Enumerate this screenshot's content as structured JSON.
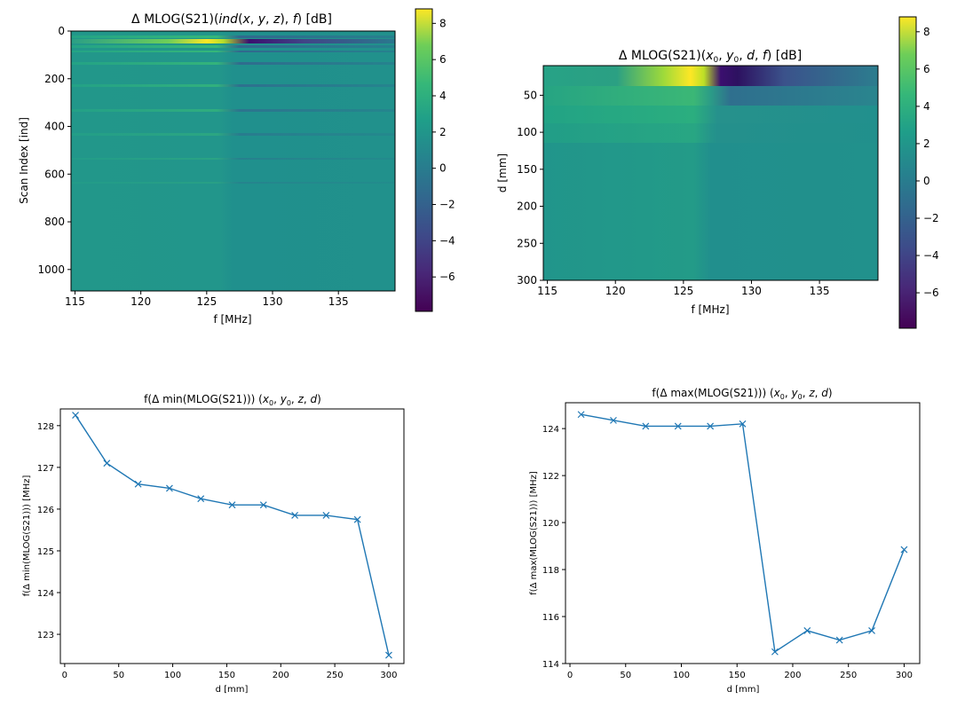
{
  "chart_data": [
    {
      "type": "heatmap",
      "title": "Δ MLOG(S21)(ind(x, y, z), f) [dB]",
      "xlabel": "f [MHz]",
      "ylabel": "Scan Index [ind]",
      "xlim": [
        114.7,
        139.3
      ],
      "ylim": [
        1090,
        0
      ],
      "x_ticks": [
        "115",
        "120",
        "125",
        "130",
        "135"
      ],
      "y_ticks": [
        "0",
        "200",
        "400",
        "600",
        "800",
        "1000"
      ],
      "colorbar": {
        "min": -7.9,
        "max": 8.8,
        "ticks": [
          "8",
          "6",
          "4",
          "2",
          "0",
          "−2",
          "−4",
          "−6"
        ]
      },
      "colormap": "viridis"
    },
    {
      "type": "heatmap",
      "title": "Δ MLOG(S21)(x0, y0, d, f) [dB]",
      "xlabel": "f [MHz]",
      "ylabel": "d [mm]",
      "xlim": [
        114.7,
        139.3
      ],
      "ylim": [
        300,
        10
      ],
      "x_ticks": [
        "115",
        "120",
        "125",
        "130",
        "135"
      ],
      "y_ticks": [
        "50",
        "100",
        "150",
        "200",
        "250",
        "300"
      ],
      "colorbar": {
        "min": -7.9,
        "max": 8.8,
        "ticks": [
          "8",
          "6",
          "4",
          "2",
          "0",
          "−2",
          "−4",
          "−6"
        ]
      },
      "colormap": "viridis"
    },
    {
      "type": "line",
      "title": "f(Δ min(MLOG(S21))) (x0, y0, z, d)",
      "xlabel": "d [mm]",
      "ylabel": "f(Δ min(MLOG(S21))) [MHz]",
      "x": [
        10,
        39,
        68,
        97,
        126,
        155,
        184,
        213,
        242,
        271,
        300
      ],
      "series": [
        {
          "values": [
            128.25,
            127.1,
            126.6,
            126.5,
            126.25,
            126.1,
            126.1,
            125.85,
            125.85,
            125.75,
            122.5
          ]
        }
      ],
      "xlim": [
        -4,
        314
      ],
      "ylim": [
        122.3,
        128.4
      ],
      "x_ticks": [
        "0",
        "50",
        "100",
        "150",
        "200",
        "250",
        "300"
      ],
      "y_ticks": [
        "123",
        "124",
        "125",
        "126",
        "127",
        "128"
      ],
      "marker": "x",
      "color": "#1f77b4"
    },
    {
      "type": "line",
      "title": "f(Δ max(MLOG(S21))) (x0, y0, z, d)",
      "xlabel": "d [mm]",
      "ylabel": "f(Δ max(MLOG(S21))) [MHz]",
      "x": [
        10,
        39,
        68,
        97,
        126,
        155,
        184,
        213,
        242,
        271,
        300
      ],
      "series": [
        {
          "values": [
            124.6,
            124.35,
            124.1,
            124.1,
            124.1,
            124.2,
            114.5,
            115.4,
            115.0,
            115.4,
            118.85
          ]
        }
      ],
      "xlim": [
        -4,
        314
      ],
      "ylim": [
        114.0,
        125.1
      ],
      "x_ticks": [
        "0",
        "50",
        "100",
        "150",
        "200",
        "250",
        "300"
      ],
      "y_ticks": [
        "114",
        "116",
        "118",
        "120",
        "122",
        "124"
      ],
      "marker": "x",
      "color": "#1f77b4"
    }
  ]
}
